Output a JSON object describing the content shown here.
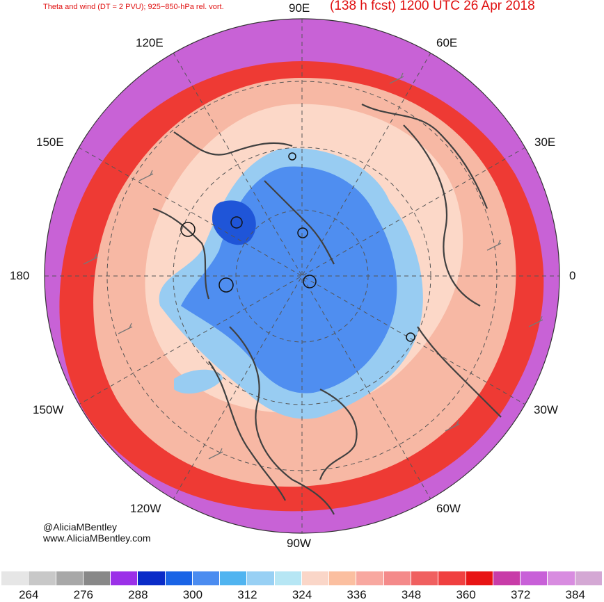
{
  "header": {
    "left_title": "Theta and wind (DT = 2 PVU); 925−850-hPa rel. vort.",
    "right_title": "(138 h fcst) 1200 UTC 26 Apr 2018"
  },
  "longitude_labels": {
    "top": "90E",
    "top_left": "120E",
    "top_right": "60E",
    "upper_left": "150E",
    "upper_right": "30E",
    "left": "180",
    "right": "0",
    "lower_left": "150W",
    "lower_right": "30W",
    "bottom_left": "120W",
    "bottom_right": "60W",
    "bottom": "90W"
  },
  "credits": {
    "handle": "@AliciaMBentley",
    "website": "www.AliciaMBentley.com"
  },
  "colorbar": {
    "colors": [
      "#e6e6e6",
      "#c8c8c8",
      "#a8a8a8",
      "#888888",
      "#9b30e8",
      "#0a2bc8",
      "#1a64e6",
      "#4b8cf0",
      "#50b4f0",
      "#98d0f4",
      "#b6e6f4",
      "#fad6c8",
      "#fbbfa0",
      "#f8a8a0",
      "#f48a8a",
      "#f06060",
      "#f04040",
      "#e81414",
      "#c83ca8",
      "#c860d8",
      "#d88ce0",
      "#d4a8d4"
    ],
    "tick_labels": [
      "264",
      "276",
      "288",
      "300",
      "312",
      "324",
      "336",
      "348",
      "360",
      "372",
      "384"
    ]
  },
  "map_colors": {
    "outer": "#c862d6",
    "ring_red": "#ee3a34",
    "mid": "#f7b8a4",
    "inner_light": "#fcd8c8",
    "cold_light": "#98ccf2",
    "cold": "#4f8ef0",
    "cold_deep": "#1f55d8",
    "contour": "#404040"
  }
}
